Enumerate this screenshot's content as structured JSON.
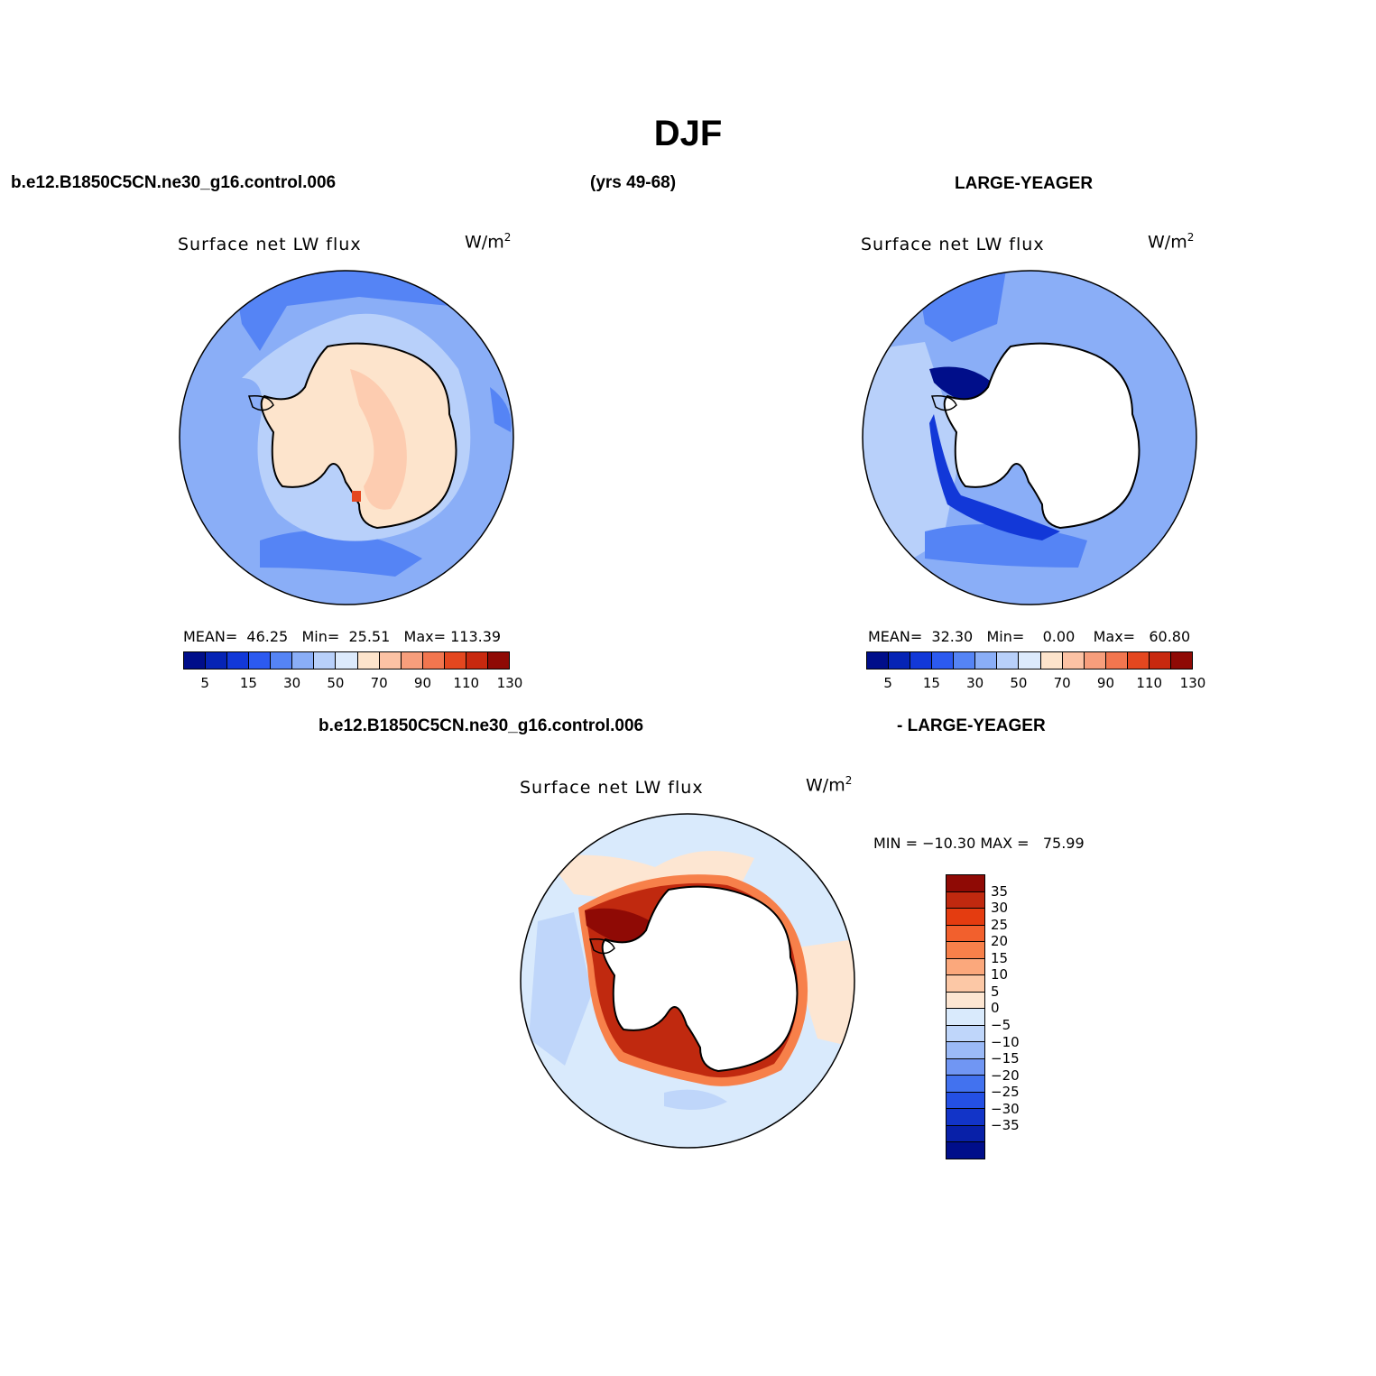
{
  "title": "DJF",
  "header": {
    "case_name": "b.e12.B1850C5CN.ne30_g16.control.006",
    "years": "(yrs 49-68)",
    "obs_name": "LARGE-YEAGER"
  },
  "diff_header": {
    "case_name": "b.e12.B1850C5CN.ne30_g16.control.006",
    "obs_name": "- LARGE-YEAGER"
  },
  "panels": [
    {
      "variable": "Surface net LW flux",
      "units": "W/m",
      "units_sup": "2",
      "mean_label": "MEAN=",
      "mean": "46.25",
      "min_label": "Min=",
      "min": "25.51",
      "max_label": "Max=",
      "max": "113.39"
    },
    {
      "variable": "Surface net LW flux",
      "units": "W/m",
      "units_sup": "2",
      "mean_label": "MEAN=",
      "mean": "32.30",
      "min_label": "Min=",
      "min": "0.00",
      "max_label": "Max=",
      "max": "60.80"
    },
    {
      "variable": "Surface net LW flux",
      "units": "W/m",
      "units_sup": "2",
      "minmax_label": "MIN = −10.30 MAX =   75.99"
    }
  ],
  "colorbar_abs": {
    "colors": [
      "#000e8a",
      "#0624b5",
      "#1238d8",
      "#2c5af0",
      "#5584f5",
      "#8aaef7",
      "#b8d0fa",
      "#dceafc",
      "#fde4cc",
      "#fcc2a4",
      "#f79e7c",
      "#f2764f",
      "#e4471f",
      "#c8290f",
      "#8f0a05"
    ],
    "ticks": [
      "5",
      "15",
      "30",
      "50",
      "70",
      "90",
      "110",
      "130"
    ]
  },
  "colorbar_diff": {
    "colors": [
      "#8f0a05",
      "#c0290f",
      "#e43c10",
      "#f2602d",
      "#f7804a",
      "#fba87c",
      "#fcc8a6",
      "#fde6d2",
      "#d9eafc",
      "#bfd6fa",
      "#9bbaf7",
      "#7096f3",
      "#4272ef",
      "#2450e4",
      "#1234c8",
      "#0820a8",
      "#000e8a"
    ],
    "ticks": [
      "35",
      "30",
      "25",
      "20",
      "15",
      "10",
      "5",
      "0",
      "−5",
      "−10",
      "−15",
      "−20",
      "−25",
      "−30",
      "−35"
    ]
  },
  "map_colors": {
    "ocean_mid": "#8aaef7",
    "ocean_light": "#b8d0fa",
    "ocean_dark": "#5584f5",
    "ocean_deep": "#2c5af0",
    "ice_land": "#fde4cc",
    "ice_warm": "#fcc2a4",
    "diff_neutral": "#d9eafc",
    "diff_warm": "#fde6d2",
    "diff_hot": "#8f0a05"
  }
}
